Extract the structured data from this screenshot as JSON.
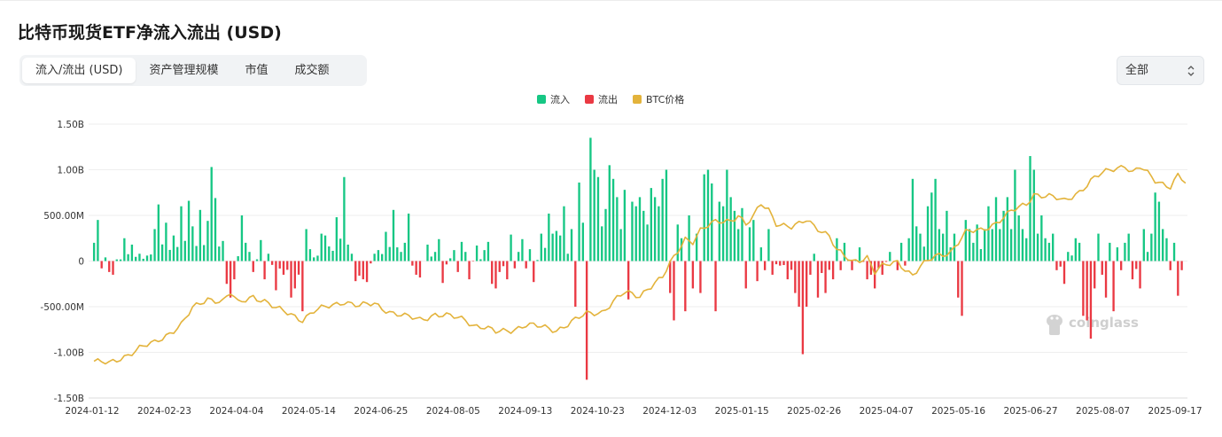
{
  "page": {
    "title": "比特币现货ETF净流入流出 (USD)",
    "tabs": [
      "流入/流出 (USD)",
      "资产管理规模",
      "市值",
      "成交额"
    ],
    "active_tab": 0,
    "select": {
      "value": "全部"
    },
    "watermark": "coinglass"
  },
  "colors": {
    "inflow": "#16c784",
    "outflow": "#ea3943",
    "price": "#e3b33b",
    "grid": "#eeeeee"
  },
  "chart_data": {
    "type": "bar",
    "legend": [
      "流入",
      "流出",
      "BTC价格"
    ],
    "legend_position": "top-center",
    "grid": true,
    "y_ticks": [
      "1.50B",
      "1.00B",
      "500.00M",
      "0",
      "-500.00M",
      "-1.00B",
      "-1.50B"
    ],
    "ylim": [
      -1500,
      1500
    ],
    "y_unit": "M USD",
    "x_ticks": [
      "2024-01-12",
      "2024-02-23",
      "2024-04-04",
      "2024-05-14",
      "2024-06-25",
      "2024-08-05",
      "2024-09-13",
      "2024-10-23",
      "2024-12-03",
      "2025-01-15",
      "2025-02-26",
      "2025-04-07",
      "2025-05-16",
      "2025-06-27",
      "2025-08-07",
      "2025-09-17"
    ],
    "flow_anchors": [
      [
        0,
        200
      ],
      [
        1,
        450
      ],
      [
        2,
        -80
      ],
      [
        3,
        40
      ],
      [
        4,
        -120
      ],
      [
        5,
        -150
      ],
      [
        8,
        250
      ],
      [
        10,
        180
      ],
      [
        12,
        80
      ],
      [
        14,
        60
      ],
      [
        16,
        350
      ],
      [
        17,
        620
      ],
      [
        19,
        420
      ],
      [
        21,
        280
      ],
      [
        23,
        600
      ],
      [
        25,
        660
      ],
      [
        26,
        380
      ],
      [
        28,
        560
      ],
      [
        30,
        440
      ],
      [
        31,
        1030
      ],
      [
        32,
        690
      ],
      [
        34,
        220
      ],
      [
        35,
        -250
      ],
      [
        36,
        -400
      ],
      [
        37,
        -200
      ],
      [
        39,
        500
      ],
      [
        40,
        200
      ],
      [
        41,
        100
      ],
      [
        42,
        -120
      ],
      [
        44,
        230
      ],
      [
        45,
        -200
      ],
      [
        46,
        80
      ],
      [
        48,
        -320
      ],
      [
        50,
        -150
      ],
      [
        52,
        -400
      ],
      [
        53,
        -300
      ],
      [
        55,
        -550
      ],
      [
        56,
        350
      ],
      [
        57,
        130
      ],
      [
        58,
        40
      ],
      [
        60,
        300
      ],
      [
        61,
        280
      ],
      [
        62,
        160
      ],
      [
        64,
        480
      ],
      [
        66,
        920
      ],
      [
        67,
        180
      ],
      [
        68,
        80
      ],
      [
        69,
        -220
      ],
      [
        70,
        -160
      ],
      [
        71,
        -200
      ],
      [
        72,
        -230
      ],
      [
        74,
        80
      ],
      [
        75,
        120
      ],
      [
        77,
        320
      ],
      [
        79,
        560
      ],
      [
        80,
        150
      ],
      [
        81,
        100
      ],
      [
        82,
        200
      ],
      [
        83,
        520
      ],
      [
        84,
        -50
      ],
      [
        85,
        -150
      ],
      [
        86,
        -180
      ],
      [
        88,
        180
      ],
      [
        90,
        100
      ],
      [
        91,
        240
      ],
      [
        92,
        -240
      ],
      [
        94,
        30
      ],
      [
        95,
        120
      ],
      [
        96,
        -120
      ],
      [
        97,
        210
      ],
      [
        98,
        100
      ],
      [
        99,
        -200
      ],
      [
        101,
        170
      ],
      [
        102,
        20
      ],
      [
        103,
        120
      ],
      [
        104,
        210
      ],
      [
        105,
        -250
      ],
      [
        106,
        -300
      ],
      [
        107,
        -120
      ],
      [
        109,
        -200
      ],
      [
        110,
        290
      ],
      [
        111,
        -80
      ],
      [
        112,
        100
      ],
      [
        113,
        240
      ],
      [
        114,
        -80
      ],
      [
        115,
        130
      ],
      [
        116,
        -230
      ],
      [
        118,
        300
      ],
      [
        120,
        520
      ],
      [
        121,
        300
      ],
      [
        122,
        330
      ],
      [
        123,
        280
      ],
      [
        124,
        600
      ],
      [
        125,
        80
      ],
      [
        126,
        350
      ],
      [
        127,
        -500
      ],
      [
        128,
        860
      ],
      [
        129,
        420
      ],
      [
        130,
        -1300
      ],
      [
        131,
        1350
      ],
      [
        132,
        1000
      ],
      [
        133,
        920
      ],
      [
        134,
        380
      ],
      [
        135,
        570
      ],
      [
        136,
        1050
      ],
      [
        137,
        900
      ],
      [
        138,
        700
      ],
      [
        139,
        350
      ],
      [
        140,
        780
      ],
      [
        141,
        -420
      ],
      [
        142,
        650
      ],
      [
        143,
        600
      ],
      [
        144,
        700
      ],
      [
        145,
        550
      ],
      [
        146,
        400
      ],
      [
        147,
        800
      ],
      [
        148,
        700
      ],
      [
        149,
        600
      ],
      [
        150,
        900
      ],
      [
        151,
        1000
      ],
      [
        152,
        -350
      ],
      [
        153,
        -650
      ],
      [
        154,
        400
      ],
      [
        155,
        250
      ],
      [
        156,
        -550
      ],
      [
        157,
        500
      ],
      [
        158,
        -300
      ],
      [
        159,
        300
      ],
      [
        160,
        -350
      ],
      [
        161,
        950
      ],
      [
        162,
        1000
      ],
      [
        163,
        850
      ],
      [
        164,
        -550
      ],
      [
        165,
        650
      ],
      [
        166,
        600
      ],
      [
        167,
        1000
      ],
      [
        168,
        700
      ],
      [
        169,
        550
      ],
      [
        170,
        350
      ],
      [
        171,
        580
      ],
      [
        172,
        -300
      ],
      [
        173,
        370
      ],
      [
        174,
        450
      ],
      [
        175,
        -220
      ],
      [
        176,
        150
      ],
      [
        177,
        -100
      ],
      [
        178,
        350
      ],
      [
        179,
        -150
      ],
      [
        181,
        -50
      ],
      [
        183,
        -200
      ],
      [
        185,
        -350
      ],
      [
        186,
        -500
      ],
      [
        187,
        -1020
      ],
      [
        188,
        -500
      ],
      [
        189,
        -150
      ],
      [
        190,
        80
      ],
      [
        191,
        -400
      ],
      [
        193,
        -350
      ],
      [
        195,
        -200
      ],
      [
        196,
        250
      ],
      [
        197,
        -100
      ],
      [
        198,
        200
      ],
      [
        200,
        -100
      ],
      [
        202,
        150
      ],
      [
        204,
        -200
      ],
      [
        205,
        -150
      ],
      [
        206,
        -300
      ],
      [
        208,
        -150
      ],
      [
        210,
        100
      ],
      [
        212,
        -100
      ],
      [
        213,
        200
      ],
      [
        214,
        -50
      ],
      [
        215,
        250
      ],
      [
        216,
        900
      ],
      [
        217,
        380
      ],
      [
        218,
        300
      ],
      [
        220,
        600
      ],
      [
        221,
        750
      ],
      [
        222,
        900
      ],
      [
        223,
        350
      ],
      [
        224,
        300
      ],
      [
        225,
        550
      ],
      [
        226,
        150
      ],
      [
        227,
        300
      ],
      [
        228,
        -400
      ],
      [
        229,
        -600
      ],
      [
        230,
        450
      ],
      [
        231,
        350
      ],
      [
        232,
        200
      ],
      [
        233,
        400
      ],
      [
        235,
        350
      ],
      [
        236,
        600
      ],
      [
        237,
        350
      ],
      [
        238,
        700
      ],
      [
        239,
        350
      ],
      [
        240,
        550
      ],
      [
        241,
        700
      ],
      [
        242,
        350
      ],
      [
        243,
        1000
      ],
      [
        244,
        500
      ],
      [
        245,
        350
      ],
      [
        246,
        250
      ],
      [
        247,
        1150
      ],
      [
        248,
        1000
      ],
      [
        249,
        300
      ],
      [
        250,
        500
      ],
      [
        251,
        250
      ],
      [
        252,
        200
      ],
      [
        253,
        300
      ],
      [
        254,
        -100
      ],
      [
        256,
        -250
      ],
      [
        257,
        100
      ],
      [
        259,
        250
      ],
      [
        260,
        200
      ],
      [
        261,
        -600
      ],
      [
        262,
        -650
      ],
      [
        263,
        -850
      ],
      [
        264,
        -300
      ],
      [
        265,
        300
      ],
      [
        266,
        -150
      ],
      [
        267,
        -400
      ],
      [
        268,
        200
      ],
      [
        269,
        -550
      ],
      [
        270,
        150
      ],
      [
        271,
        -100
      ],
      [
        272,
        200
      ],
      [
        273,
        300
      ],
      [
        274,
        -200
      ],
      [
        276,
        -300
      ],
      [
        277,
        350
      ],
      [
        278,
        100
      ],
      [
        279,
        300
      ],
      [
        280,
        750
      ],
      [
        281,
        650
      ],
      [
        282,
        350
      ],
      [
        283,
        250
      ],
      [
        284,
        -100
      ],
      [
        285,
        200
      ],
      [
        286,
        -380
      ],
      [
        287,
        -100
      ]
    ],
    "price_anchors": [
      [
        0,
        44
      ],
      [
        4,
        43
      ],
      [
        8,
        46
      ],
      [
        12,
        49
      ],
      [
        16,
        51
      ],
      [
        20,
        55
      ],
      [
        23,
        58
      ],
      [
        26,
        64
      ],
      [
        30,
        68
      ],
      [
        34,
        67
      ],
      [
        36,
        70
      ],
      [
        38,
        66
      ],
      [
        42,
        69
      ],
      [
        45,
        67
      ],
      [
        48,
        64
      ],
      [
        52,
        62
      ],
      [
        55,
        60
      ],
      [
        58,
        63
      ],
      [
        62,
        65
      ],
      [
        66,
        67
      ],
      [
        70,
        65
      ],
      [
        74,
        66
      ],
      [
        78,
        63
      ],
      [
        82,
        61
      ],
      [
        86,
        60
      ],
      [
        90,
        62
      ],
      [
        94,
        61
      ],
      [
        98,
        60
      ],
      [
        100,
        58
      ],
      [
        103,
        57
      ],
      [
        106,
        55
      ],
      [
        110,
        56
      ],
      [
        114,
        58
      ],
      [
        118,
        57
      ],
      [
        122,
        56
      ],
      [
        126,
        59
      ],
      [
        130,
        62
      ],
      [
        134,
        63
      ],
      [
        138,
        68
      ],
      [
        140,
        70
      ],
      [
        144,
        69
      ],
      [
        146,
        72
      ],
      [
        150,
        76
      ],
      [
        154,
        86
      ],
      [
        156,
        91
      ],
      [
        158,
        90
      ],
      [
        160,
        94
      ],
      [
        164,
        97
      ],
      [
        168,
        98
      ],
      [
        170,
        100
      ],
      [
        172,
        96
      ],
      [
        174,
        99
      ],
      [
        176,
        104
      ],
      [
        178,
        102
      ],
      [
        180,
        97
      ],
      [
        184,
        95
      ],
      [
        186,
        96
      ],
      [
        188,
        98
      ],
      [
        190,
        96
      ],
      [
        194,
        92
      ],
      [
        196,
        86
      ],
      [
        200,
        82
      ],
      [
        204,
        84
      ],
      [
        206,
        78
      ],
      [
        208,
        80
      ],
      [
        212,
        82
      ],
      [
        216,
        77
      ],
      [
        218,
        80
      ],
      [
        222,
        84
      ],
      [
        226,
        86
      ],
      [
        230,
        93
      ],
      [
        234,
        94
      ],
      [
        238,
        97
      ],
      [
        242,
        101
      ],
      [
        246,
        104
      ],
      [
        248,
        108
      ],
      [
        252,
        107
      ],
      [
        256,
        105
      ],
      [
        260,
        109
      ],
      [
        264,
        114
      ],
      [
        268,
        117
      ],
      [
        272,
        119
      ],
      [
        274,
        116
      ],
      [
        276,
        118
      ],
      [
        280,
        113
      ],
      [
        284,
        111
      ],
      [
        286,
        115
      ],
      [
        288,
        112
      ]
    ],
    "bar_count": 289
  }
}
